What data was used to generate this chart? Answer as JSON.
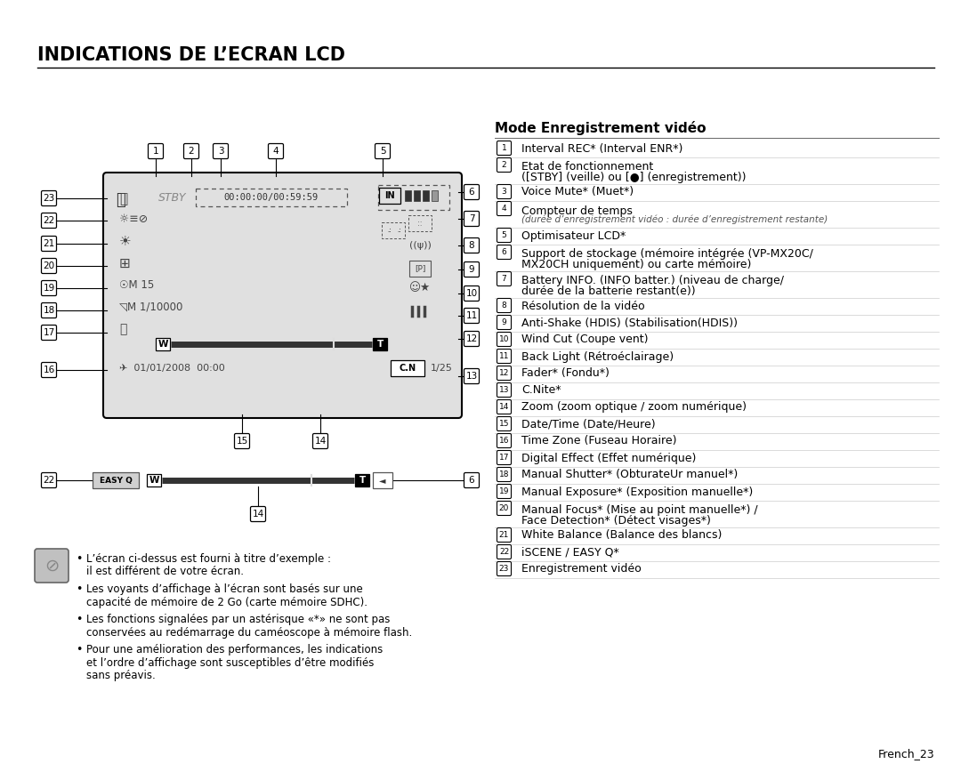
{
  "title": "INDICATIONS DE L’ECRAN LCD",
  "section_title": "Mode Enregistrement vidéo",
  "bg_color": "#ffffff",
  "text_color": "#000000",
  "items": [
    [
      "1",
      "Interval REC* (Interval ENR*)",
      false
    ],
    [
      "2",
      "Etat de fonctionnement",
      true,
      "([STBY] (veille) ou [●] (enregistrement))"
    ],
    [
      "3",
      "Voice Mute* (Muet*)",
      false
    ],
    [
      "4",
      "Compteur de temps",
      true,
      "(durée d’enregistrement vidéo : durée d’enregistrement restante)"
    ],
    [
      "5",
      "Optimisateur LCD*",
      false
    ],
    [
      "6",
      "Support de stockage (mémoire intégrée (VP-MX20C/",
      true,
      "MX20CH uniquement) ou carte mémoire)"
    ],
    [
      "7",
      "Battery INFO. (INFO batter.) (niveau de charge/",
      true,
      "durée de la batterie restant(e))"
    ],
    [
      "8",
      "Résolution de la vidéo",
      false
    ],
    [
      "9",
      "Anti-Shake (HDIS) (Stabilisation(HDIS))",
      false
    ],
    [
      "10",
      "Wind Cut (Coupe vent)",
      false
    ],
    [
      "11",
      "Back Light (Rétroéclairage)",
      false
    ],
    [
      "12",
      "Fader* (Fondu*)",
      false
    ],
    [
      "13",
      "C.Nite*",
      false
    ],
    [
      "14",
      "Zoom (zoom optique / zoom numérique)",
      false
    ],
    [
      "15",
      "Date/Time (Date/Heure)",
      false
    ],
    [
      "16",
      "Time Zone (Fuseau Horaire)",
      false
    ],
    [
      "17",
      "Digital Effect (Effet numérique)",
      false
    ],
    [
      "18",
      "Manual Shutter* (ObturateUr manuel*)",
      false
    ],
    [
      "19",
      "Manual Exposure* (Exposition manuelle*)",
      false
    ],
    [
      "20",
      "Manual Focus* (Mise au point manuelle*) /",
      true,
      "Face Detection* (Détect visages*)"
    ],
    [
      "21",
      "White Balance (Balance des blancs)",
      false
    ],
    [
      "22",
      "iSCENE / EASY Q*",
      false
    ],
    [
      "23",
      "Enregistrement vidéo",
      false
    ]
  ],
  "bullet_points": [
    [
      "L’écran ci-dessus est fourni à titre d’exemple :",
      "il est différent de votre écran."
    ],
    [
      "Les voyants d’affichage à l’écran sont basés sur une",
      "capacité de mémoire de 2 Go (carte mémoire SDHC)."
    ],
    [
      "Les fonctions signalées par un astérisque «*» ne sont pas",
      "conservées au redémarrage du caméoscope à mémoire flash."
    ],
    [
      "Pour une amélioration des performances, les indications",
      "et l’ordre d’affichage sont susceptibles d’être modifiés",
      "sans préavis."
    ]
  ],
  "footer": "French_23",
  "screen_bg": "#e0e0e0",
  "label_box_bg": "#ffffff",
  "label_box_border": "#000000",
  "line_color": "#cccccc",
  "separator_color": "#aaaaaa"
}
